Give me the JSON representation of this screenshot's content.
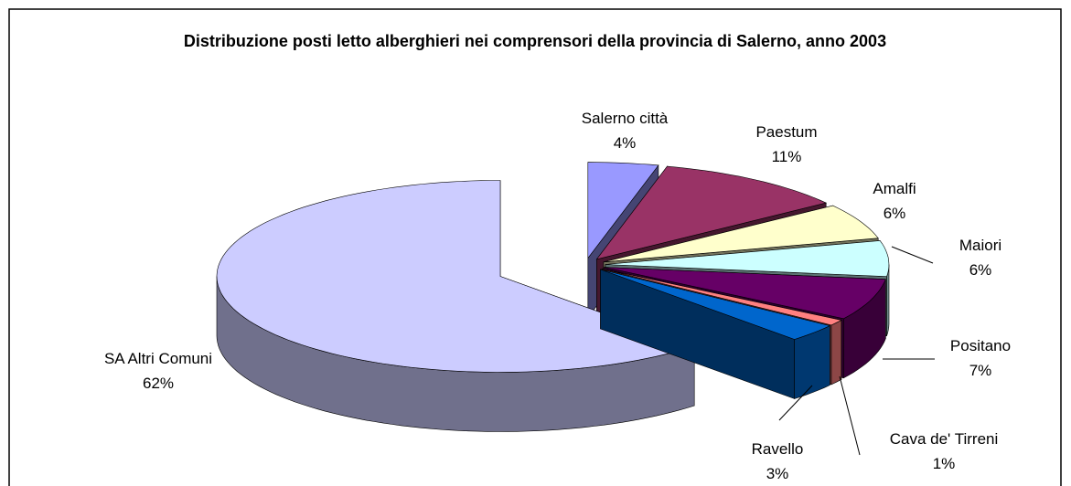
{
  "chart_data": {
    "type": "pie3d",
    "title": "Distribuzione posti letto alberghieri nei comprensori della provincia di Salerno, anno 2003",
    "categories": [
      "Salerno città",
      "Paestum",
      "Amalfi",
      "Maiori",
      "Positano",
      "Cava de' Tirreni",
      "Ravello",
      "SA Altri Comuni"
    ],
    "values": [
      4,
      11,
      6,
      6,
      7,
      1,
      3,
      62
    ],
    "value_labels": [
      "4%",
      "11%",
      "6%",
      "6%",
      "7%",
      "1%",
      "3%",
      "62%"
    ],
    "colors": [
      "#9999ff",
      "#993366",
      "#ffffcc",
      "#ccffff",
      "#660066",
      "#ff8080",
      "#0066cc",
      "#ccccff"
    ]
  }
}
